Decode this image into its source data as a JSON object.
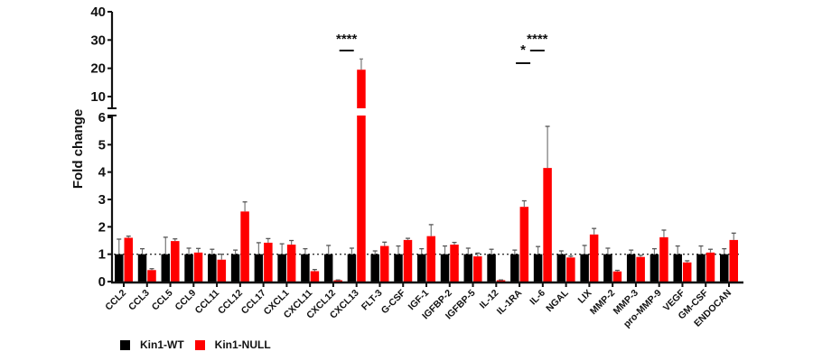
{
  "chart_data": {
    "type": "bar",
    "title": "",
    "xlabel": "",
    "ylabel": "Fold change",
    "y_axis": {
      "broken": true,
      "lower_range": [
        0,
        6
      ],
      "lower_ticks": [
        0,
        1,
        2,
        3,
        4,
        5,
        6
      ],
      "upper_range": [
        7,
        40
      ],
      "upper_ticks": [
        10,
        20,
        30,
        40
      ]
    },
    "reference_line": {
      "y": 1,
      "style": "dotted"
    },
    "categories": [
      "CCL2",
      "CCL3",
      "CCL5",
      "CCL9",
      "CCL11",
      "CCL12",
      "CCL17",
      "CXCL1",
      "CXCL11",
      "CXCL12",
      "CXCL13",
      "FLT-3",
      "G-CSF",
      "IGF-1",
      "IGFBP-2",
      "IGFBP-5",
      "IL-12",
      "IL-1RA",
      "IL-6",
      "NGAL",
      "LIX",
      "MMP-2",
      "MMP-3",
      "pro-MMP-9",
      "VEGF",
      "GM-CSF",
      "ENDOCAN"
    ],
    "series": [
      {
        "name": "Kin1-WT",
        "color": "#000000",
        "values": [
          1,
          1,
          1,
          1,
          1,
          1,
          1,
          1,
          1,
          1,
          1,
          1,
          1,
          1,
          1,
          1,
          1,
          1,
          1,
          1,
          1,
          1,
          1,
          1,
          1,
          1,
          1
        ],
        "error": [
          0.55,
          0.2,
          0.62,
          0.22,
          0.18,
          0.15,
          0.42,
          0.38,
          0.2,
          0.32,
          0.22,
          0.12,
          0.3,
          0.2,
          0.3,
          0.22,
          0.18,
          0.15,
          0.28,
          0.12,
          0.32,
          0.22,
          0.15,
          0.2,
          0.3,
          0.3,
          0.2
        ]
      },
      {
        "name": "Kin1-NULL",
        "color": "#ff0000",
        "values": [
          1.6,
          0.42,
          1.48,
          1.06,
          0.8,
          2.56,
          1.42,
          1.35,
          0.38,
          0.05,
          19.5,
          1.3,
          1.52,
          1.66,
          1.35,
          0.92,
          0.05,
          2.73,
          4.15,
          0.88,
          1.72,
          0.37,
          0.9,
          1.62,
          0.7,
          1.06,
          1.52
        ],
        "error": [
          0.06,
          0.05,
          0.08,
          0.15,
          0.2,
          0.35,
          0.15,
          0.15,
          0.06,
          0.01,
          3.8,
          0.14,
          0.06,
          0.42,
          0.08,
          0.12,
          0.01,
          0.22,
          1.52,
          0.05,
          0.22,
          0.04,
          0.06,
          0.26,
          0.06,
          0.12,
          0.25
        ]
      }
    ],
    "annotations": [
      {
        "category": "CXCL13",
        "text": "****"
      },
      {
        "category": "IL-1RA",
        "text": "*"
      },
      {
        "category": "IL-6",
        "text": "****"
      }
    ],
    "legend": {
      "position": "bottom-left",
      "entries": [
        "Kin1-WT",
        "Kin1-NULL"
      ]
    },
    "grid": false
  }
}
